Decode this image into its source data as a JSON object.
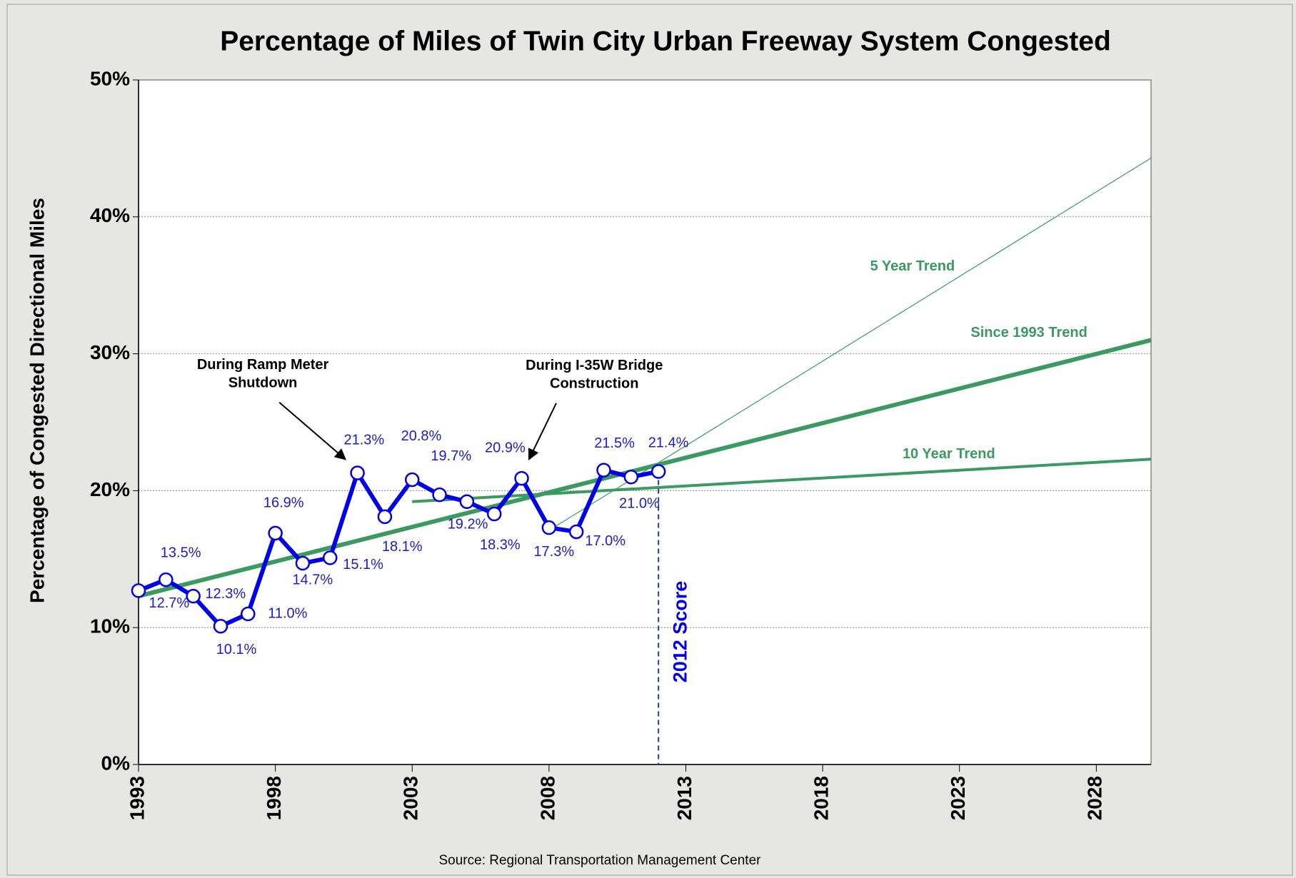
{
  "chart_data": {
    "type": "line",
    "title": "Percentage  of Miles of Twin City Urban Freeway System Congested",
    "y_label": "Percentage of Congested Directional Miles",
    "source": "Source: Regional Transportation Management Center",
    "xlim": [
      1993,
      2030
    ],
    "xticks": [
      1993,
      1998,
      2003,
      2008,
      2013,
      2018,
      2023,
      2028
    ],
    "ylim": [
      0,
      50
    ],
    "yticks": [
      {
        "value": 0,
        "label": "0%"
      },
      {
        "value": 10,
        "label": "10%"
      },
      {
        "value": 20,
        "label": "20%"
      },
      {
        "value": 30,
        "label": "30%"
      },
      {
        "value": 40,
        "label": "40%"
      },
      {
        "value": 50,
        "label": "50%"
      }
    ],
    "grid": true,
    "series": [
      {
        "color": "#0000e6",
        "x": [
          1993,
          1994,
          1995,
          1996,
          1997,
          1998,
          1999,
          2000,
          2001,
          2002,
          2003,
          2004,
          2005,
          2006,
          2007,
          2008,
          2009,
          2010,
          2011,
          2012
        ],
        "values": [
          12.7,
          13.5,
          12.3,
          10.1,
          11.0,
          16.9,
          14.7,
          15.1,
          21.3,
          18.1,
          20.8,
          19.7,
          19.2,
          18.3,
          20.9,
          17.3,
          17.0,
          21.5,
          21.0,
          21.4
        ],
        "value_labels": [
          "12.7%",
          "13.5%",
          "12.3%",
          "10.1%",
          "11.0%",
          "16.9%",
          "14.7%",
          "15.1%",
          "21.3%",
          "18.1%",
          "20.8%",
          "19.7%",
          "19.2%",
          "18.3%",
          "20.9%",
          "17.3%",
          "17.0%",
          "21.5%",
          "21.0%",
          "21.4%"
        ]
      },
      {
        "name": "5 Year Trend",
        "color": "#3a9a5f",
        "x": [
          2008,
          2030
        ],
        "values": [
          17.1,
          44.3
        ]
      },
      {
        "name": "Since 1993 Trend",
        "color": "#3a9a5f",
        "x": [
          1993,
          2030
        ],
        "values": [
          12.3,
          31.0
        ]
      },
      {
        "name": "10 Year Trend",
        "color": "#3a9a5f",
        "x": [
          2003,
          2030
        ],
        "values": [
          19.2,
          22.3
        ]
      }
    ],
    "annotations": [
      {
        "lines": [
          "During Ramp Meter",
          "Shutdown"
        ]
      },
      {
        "lines": [
          "During I-35W Bridge",
          "Construction"
        ]
      },
      {
        "text": "2012 Score",
        "x": 2012
      }
    ]
  }
}
